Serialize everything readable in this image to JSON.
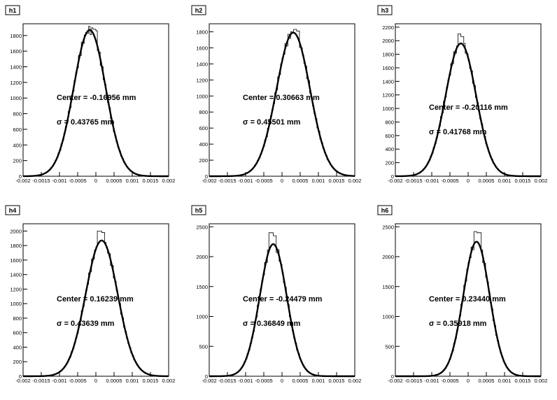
{
  "chart_data": [
    {
      "type": "histogram",
      "title": "h1",
      "x_ticks": [
        "-0.002",
        "-0.0015",
        "-0.001",
        "-0.0005",
        "0",
        "0.0005",
        "0.001",
        "0.0015",
        "0.002"
      ],
      "xlim": [
        -0.002,
        0.002
      ],
      "ylim": [
        0,
        1950
      ],
      "y_ticks": [
        0,
        200,
        400,
        600,
        800,
        1000,
        1200,
        1400,
        1600,
        1800
      ],
      "fit": {
        "amplitude": 1870,
        "mean": -0.00017,
        "sigma": 0.00044
      },
      "annotations": {
        "center": "Center =  -0.16956 mm",
        "sigma": "σ =  0.43765 mm"
      },
      "hist_noise": [
        {
          "x": -5e-05,
          "y": 1880
        },
        {
          "x": -2e-05,
          "y": 1860
        }
      ]
    },
    {
      "type": "histogram",
      "title": "h2",
      "x_ticks": [
        "-0.002",
        "-0.0015",
        "-0.001",
        "-0.0005",
        "0",
        "0.0005",
        "0.001",
        "0.0015",
        "0.002"
      ],
      "xlim": [
        -0.002,
        0.002
      ],
      "ylim": [
        0,
        1900
      ],
      "y_ticks": [
        0,
        200,
        400,
        600,
        800,
        1000,
        1200,
        1400,
        1600,
        1800
      ],
      "fit": {
        "amplitude": 1790,
        "mean": 0.00031,
        "sigma": 0.00046
      },
      "annotations": {
        "center": "Center =  0.30663 mm",
        "sigma": "σ =  0.45501 mm"
      },
      "hist_noise": [
        {
          "x": 0.00035,
          "y": 1830
        },
        {
          "x": 0.00045,
          "y": 1810
        }
      ]
    },
    {
      "type": "histogram",
      "title": "h3",
      "x_ticks": [
        "-0.002",
        "-0.0015",
        "-0.001",
        "-0.0005",
        "0",
        "0.0005",
        "0.001",
        "0.0015",
        "0.002"
      ],
      "xlim": [
        -0.002,
        0.002
      ],
      "ylim": [
        0,
        2250
      ],
      "y_ticks": [
        0,
        200,
        400,
        600,
        800,
        1000,
        1200,
        1400,
        1600,
        1800,
        2000,
        2200
      ],
      "fit": {
        "amplitude": 1960,
        "mean": -0.0002,
        "sigma": 0.00042
      },
      "annotations": {
        "center": "Center =  -0.20116 mm",
        "sigma": "σ =  0.41768 mm"
      },
      "hist_noise": [
        {
          "x": -0.00025,
          "y": 2100
        },
        {
          "x": -0.00015,
          "y": 2060
        }
      ]
    },
    {
      "type": "histogram",
      "title": "h4",
      "x_ticks": [
        "-0.002",
        "-0.0015",
        "-0.001",
        "-0.0005",
        "0",
        "0.0005",
        "0.001",
        "0.0015",
        "0.002"
      ],
      "xlim": [
        -0.002,
        0.002
      ],
      "ylim": [
        0,
        2100
      ],
      "y_ticks": [
        0,
        200,
        400,
        600,
        800,
        1000,
        1200,
        1400,
        1600,
        1800,
        2000
      ],
      "fit": {
        "amplitude": 1870,
        "mean": 0.00016,
        "sigma": 0.00044
      },
      "annotations": {
        "center": "Center =  0.16239 mm",
        "sigma": "σ =  0.43639 mm"
      },
      "hist_noise": [
        {
          "x": 0.0001,
          "y": 2000
        },
        {
          "x": 0.0002,
          "y": 1980
        }
      ]
    },
    {
      "type": "histogram",
      "title": "h5",
      "x_ticks": [
        "-0.002",
        "-0.0015",
        "-0.001",
        "-0.0005",
        "0",
        "0.0005",
        "0.001",
        "0.0015",
        "0.002"
      ],
      "xlim": [
        -0.002,
        0.002
      ],
      "ylim": [
        0,
        2550
      ],
      "y_ticks": [
        0,
        500,
        1000,
        1500,
        2000,
        2500
      ],
      "fit": {
        "amplitude": 2210,
        "mean": -0.00024,
        "sigma": 0.00037
      },
      "annotations": {
        "center": "Center =  -0.24479 mm",
        "sigma": "σ =  0.36849 mm"
      },
      "hist_noise": [
        {
          "x": -0.0003,
          "y": 2400
        },
        {
          "x": -0.0002,
          "y": 2350
        }
      ]
    },
    {
      "type": "histogram",
      "title": "h6",
      "x_ticks": [
        "-0.002",
        "-0.0015",
        "-0.001",
        "-0.0005",
        "0",
        "0.0005",
        "0.001",
        "0.0015",
        "0.002"
      ],
      "xlim": [
        -0.002,
        0.002
      ],
      "ylim": [
        0,
        2550
      ],
      "y_ticks": [
        0,
        500,
        1000,
        1500,
        2000,
        2500
      ],
      "fit": {
        "amplitude": 2250,
        "mean": 0.00023,
        "sigma": 0.00036
      },
      "annotations": {
        "center": "Center =  0.23440 mm",
        "sigma": "σ =  0.35918 mm"
      },
      "hist_noise": [
        {
          "x": 0.0002,
          "y": 2420
        },
        {
          "x": 0.0003,
          "y": 2400
        }
      ]
    }
  ]
}
